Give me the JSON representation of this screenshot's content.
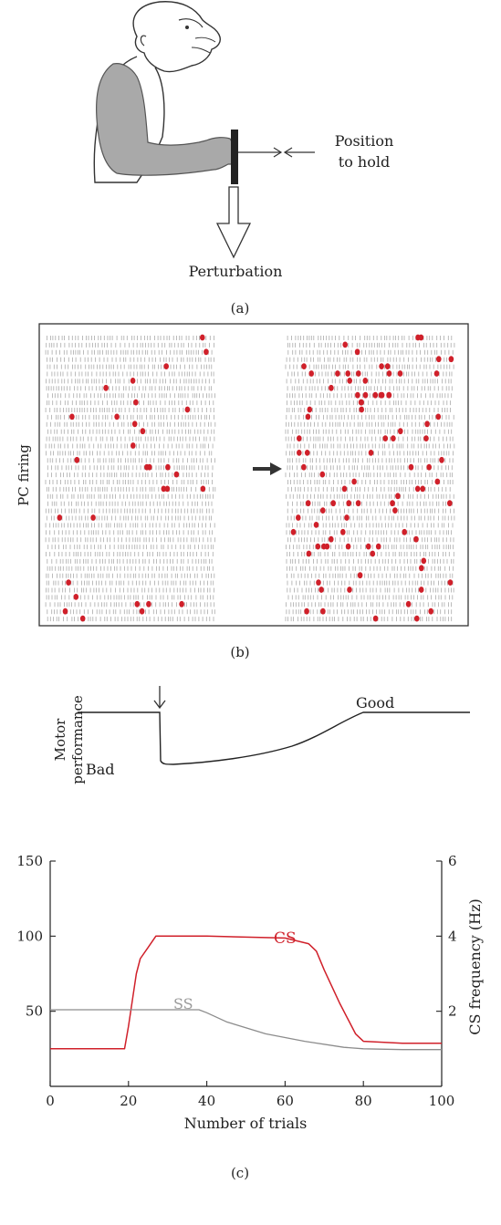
{
  "panel_a": {
    "position_label_line1": "Position",
    "position_label_line2": "to hold",
    "perturbation_label": "Perturbation",
    "caption": "(a)"
  },
  "panel_b": {
    "ylabel": "PC firing",
    "caption": "(b)",
    "colors": {
      "simple_spike": "#aaaaaa",
      "complex_spike": "#d0202a",
      "arrow": "#333333"
    }
  },
  "panel_c": {
    "caption": "(c)",
    "motor": {
      "ylabel_line1": "Motor",
      "ylabel_line2": "performance",
      "good_label": "Good",
      "bad_label": "Bad"
    }
  },
  "chart_data": {
    "type": "line",
    "xlabel": "Number of trials",
    "ylabel_right": "CS frequency (Hz)",
    "xlim": [
      0,
      100
    ],
    "ylim_left": [
      0,
      150
    ],
    "ylim_right": [
      0,
      6
    ],
    "x_ticks": [
      "0",
      "20",
      "40",
      "60",
      "80",
      "100"
    ],
    "y_ticks_left": [
      "50",
      "100",
      "150"
    ],
    "y_ticks_right": [
      "2",
      "4",
      "6"
    ],
    "series": [
      {
        "name": "CS",
        "axis": "right",
        "color": "#d0202a",
        "x": [
          0,
          19,
          20,
          21,
          22,
          23,
          25,
          27,
          40,
          60,
          66,
          68,
          70,
          74,
          78,
          80,
          90,
          100
        ],
        "y": [
          1.0,
          1.0,
          1.6,
          2.3,
          3.0,
          3.4,
          3.7,
          4.0,
          4.0,
          3.95,
          3.8,
          3.6,
          3.1,
          2.2,
          1.4,
          1.2,
          1.15,
          1.15
        ]
      },
      {
        "name": "SS",
        "axis": "left",
        "color": "#8c8c8c",
        "x": [
          0,
          20,
          30,
          38,
          40,
          45,
          55,
          65,
          75,
          80,
          90,
          100
        ],
        "y": [
          51,
          51,
          51,
          51,
          49,
          43,
          35,
          30,
          26,
          25,
          24.5,
          24.5
        ]
      }
    ],
    "annotations": [
      "CS",
      "SS"
    ]
  }
}
